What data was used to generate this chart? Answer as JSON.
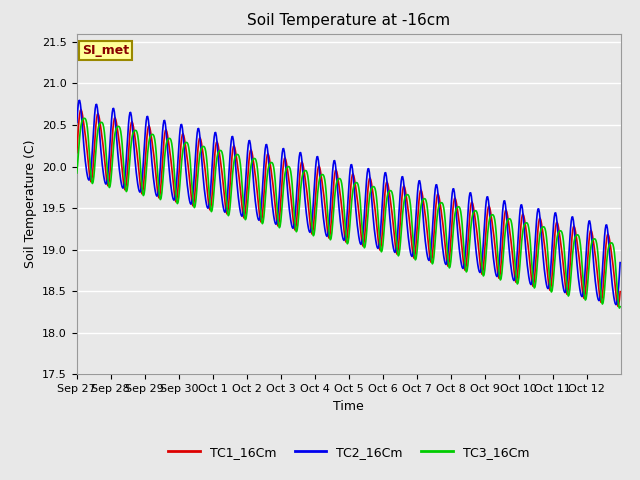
{
  "title": "Soil Temperature at -16cm",
  "xlabel": "Time",
  "ylabel": "Soil Temperature (C)",
  "ylim": [
    17.5,
    21.6
  ],
  "colors": {
    "TC1_16Cm": "#dd0000",
    "TC2_16Cm": "#0000ee",
    "TC3_16Cm": "#00cc00"
  },
  "legend_labels": [
    "TC1_16Cm",
    "TC2_16Cm",
    "TC3_16Cm"
  ],
  "annotation_text": "SI_met",
  "annotation_bg": "#ffff99",
  "annotation_border": "#998800",
  "bg_color": "#e8e8e8",
  "grid_color": "#ffffff",
  "linewidth": 1.2,
  "title_fontsize": 11,
  "axis_fontsize": 9,
  "tick_fontsize": 8
}
